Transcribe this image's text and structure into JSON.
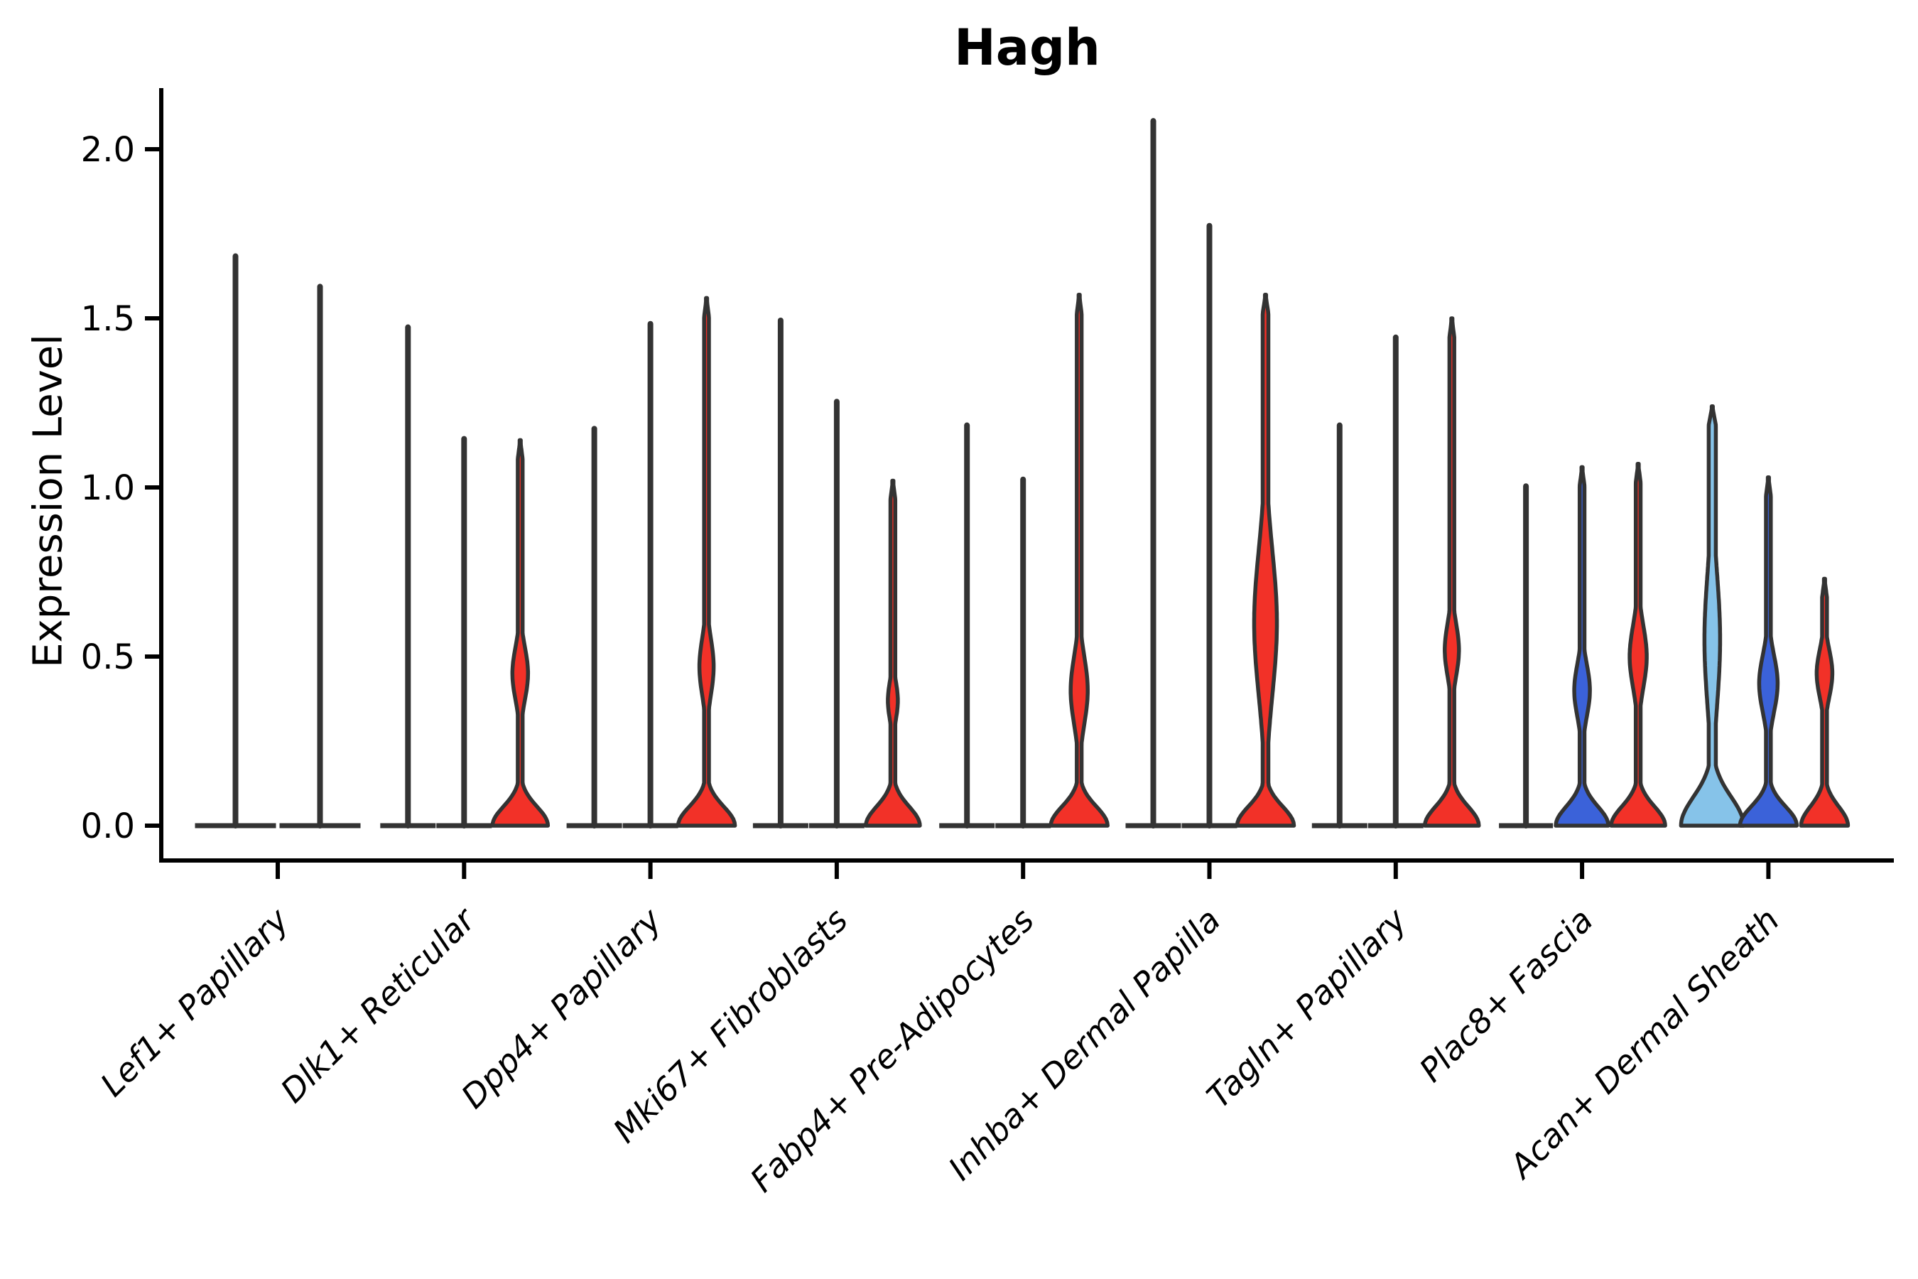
{
  "title": "Hagh",
  "y_axis": {
    "label": "Expression Level",
    "tick_labels": [
      "2.0",
      "1.5",
      "1.0",
      "0.5",
      "0.0"
    ],
    "tick_values": [
      2.0,
      1.5,
      1.0,
      0.5,
      0.0
    ]
  },
  "chart_data": {
    "type": "violin",
    "title": "Hagh",
    "xlabel": "",
    "ylabel": "Expression Level",
    "ylim": [
      -0.1,
      2.2
    ],
    "yticks": [
      2.0,
      1.5,
      1.0,
      0.5,
      0.0
    ],
    "grid": false,
    "legend_position": "none",
    "palette": {
      "outline": "#333333",
      "spike": "#333333",
      "red": "#F23128",
      "blue": "#3B62D9",
      "lightblue": "#86C3E9"
    },
    "categories": [
      "Lef1+ Papillary",
      "Dlk1+ Reticular",
      "Dpp4+ Papillary",
      "Mki67+ Fibroblasts",
      "Fabp4+ Pre-Adipocytes",
      "Inhba+ Dermal Papilla",
      "Tagln+ Papillary",
      "Plac8+ Fascia",
      "Acan+ Dermal Sheath"
    ],
    "groups": [
      {
        "category": "Lef1+ Papillary",
        "violins": [
          {
            "style": "spike",
            "color": "spike",
            "max": 1.69,
            "base_hw": 57
          },
          {
            "style": "spike",
            "color": "spike",
            "max": 1.6,
            "base_hw": 57
          }
        ]
      },
      {
        "category": "Dlk1+ Reticular",
        "violins": [
          {
            "style": "spike",
            "color": "spike",
            "max": 1.48,
            "base_hw": 39
          },
          {
            "style": "spike",
            "color": "spike",
            "max": 1.15,
            "base_hw": 39
          },
          {
            "style": "violin",
            "color": "red",
            "max": 1.14,
            "bulge_peak": 0.45,
            "bulge_sigma": 0.11,
            "bulge_hw": 11,
            "base_hw": 39
          }
        ]
      },
      {
        "category": "Dpp4+ Papillary",
        "violins": [
          {
            "style": "spike",
            "color": "spike",
            "max": 1.18,
            "base_hw": 39
          },
          {
            "style": "spike",
            "color": "spike",
            "max": 1.49,
            "base_hw": 39
          },
          {
            "style": "violin",
            "color": "red",
            "max": 1.56,
            "bulge_peak": 0.47,
            "bulge_sigma": 0.12,
            "bulge_hw": 10,
            "base_hw": 40
          }
        ]
      },
      {
        "category": "Mki67+ Fibroblasts",
        "violins": [
          {
            "style": "spike",
            "color": "spike",
            "max": 1.5,
            "base_hw": 39
          },
          {
            "style": "spike",
            "color": "spike",
            "max": 1.26,
            "base_hw": 39
          },
          {
            "style": "violin",
            "color": "red",
            "max": 1.02,
            "bulge_peak": 0.37,
            "bulge_sigma": 0.08,
            "bulge_hw": 7,
            "base_hw": 38
          }
        ]
      },
      {
        "category": "Fabp4+ Pre-Adipocytes",
        "violins": [
          {
            "style": "spike",
            "color": "spike",
            "max": 1.19,
            "base_hw": 39
          },
          {
            "style": "spike",
            "color": "spike",
            "max": 1.03,
            "base_hw": 39
          },
          {
            "style": "violin",
            "color": "red",
            "max": 1.57,
            "bulge_peak": 0.4,
            "bulge_sigma": 0.14,
            "bulge_hw": 12,
            "base_hw": 40
          }
        ]
      },
      {
        "category": "Inhba+ Dermal Papilla",
        "violins": [
          {
            "style": "spike",
            "color": "spike",
            "max": 2.09,
            "base_hw": 39
          },
          {
            "style": "spike",
            "color": "spike",
            "max": 1.78,
            "base_hw": 39
          },
          {
            "style": "violin",
            "color": "red",
            "max": 1.57,
            "bulge_peak": 0.6,
            "bulge_sigma": 0.3,
            "bulge_hw": 16,
            "neck": 4,
            "base_hw": 40
          }
        ]
      },
      {
        "category": "Tagln+ Papillary",
        "violins": [
          {
            "style": "spike",
            "color": "spike",
            "max": 1.19,
            "base_hw": 39
          },
          {
            "style": "spike",
            "color": "spike",
            "max": 1.45,
            "base_hw": 39
          },
          {
            "style": "violin",
            "color": "red",
            "max": 1.5,
            "bulge_peak": 0.52,
            "bulge_sigma": 0.11,
            "bulge_hw": 10,
            "base_hw": 38
          }
        ]
      },
      {
        "category": "Plac8+ Fascia",
        "violins": [
          {
            "style": "spike",
            "color": "spike",
            "max": 1.01,
            "base_hw": 38
          },
          {
            "style": "violin",
            "color": "blue",
            "max": 1.06,
            "bulge_peak": 0.4,
            "bulge_sigma": 0.11,
            "bulge_hw": 11,
            "base_hw": 37
          },
          {
            "style": "violin",
            "color": "red",
            "max": 1.07,
            "bulge_peak": 0.5,
            "bulge_sigma": 0.13,
            "bulge_hw": 12,
            "base_hw": 38
          }
        ]
      },
      {
        "category": "Acan+ Dermal Sheath",
        "violins": [
          {
            "style": "violin",
            "color": "lightblue",
            "max": 1.24,
            "bulge_peak": 0.55,
            "bulge_sigma": 0.28,
            "bulge_hw": 11,
            "neck": 5,
            "base_sigma": 0.12,
            "base_hw": 44
          },
          {
            "style": "violin",
            "color": "blue",
            "max": 1.03,
            "bulge_peak": 0.42,
            "bulge_sigma": 0.12,
            "bulge_hw": 13,
            "base_hw": 40
          },
          {
            "style": "violin",
            "color": "red",
            "max": 0.73,
            "bulge_peak": 0.45,
            "bulge_sigma": 0.1,
            "bulge_hw": 11,
            "base_hw": 33
          }
        ]
      }
    ]
  }
}
